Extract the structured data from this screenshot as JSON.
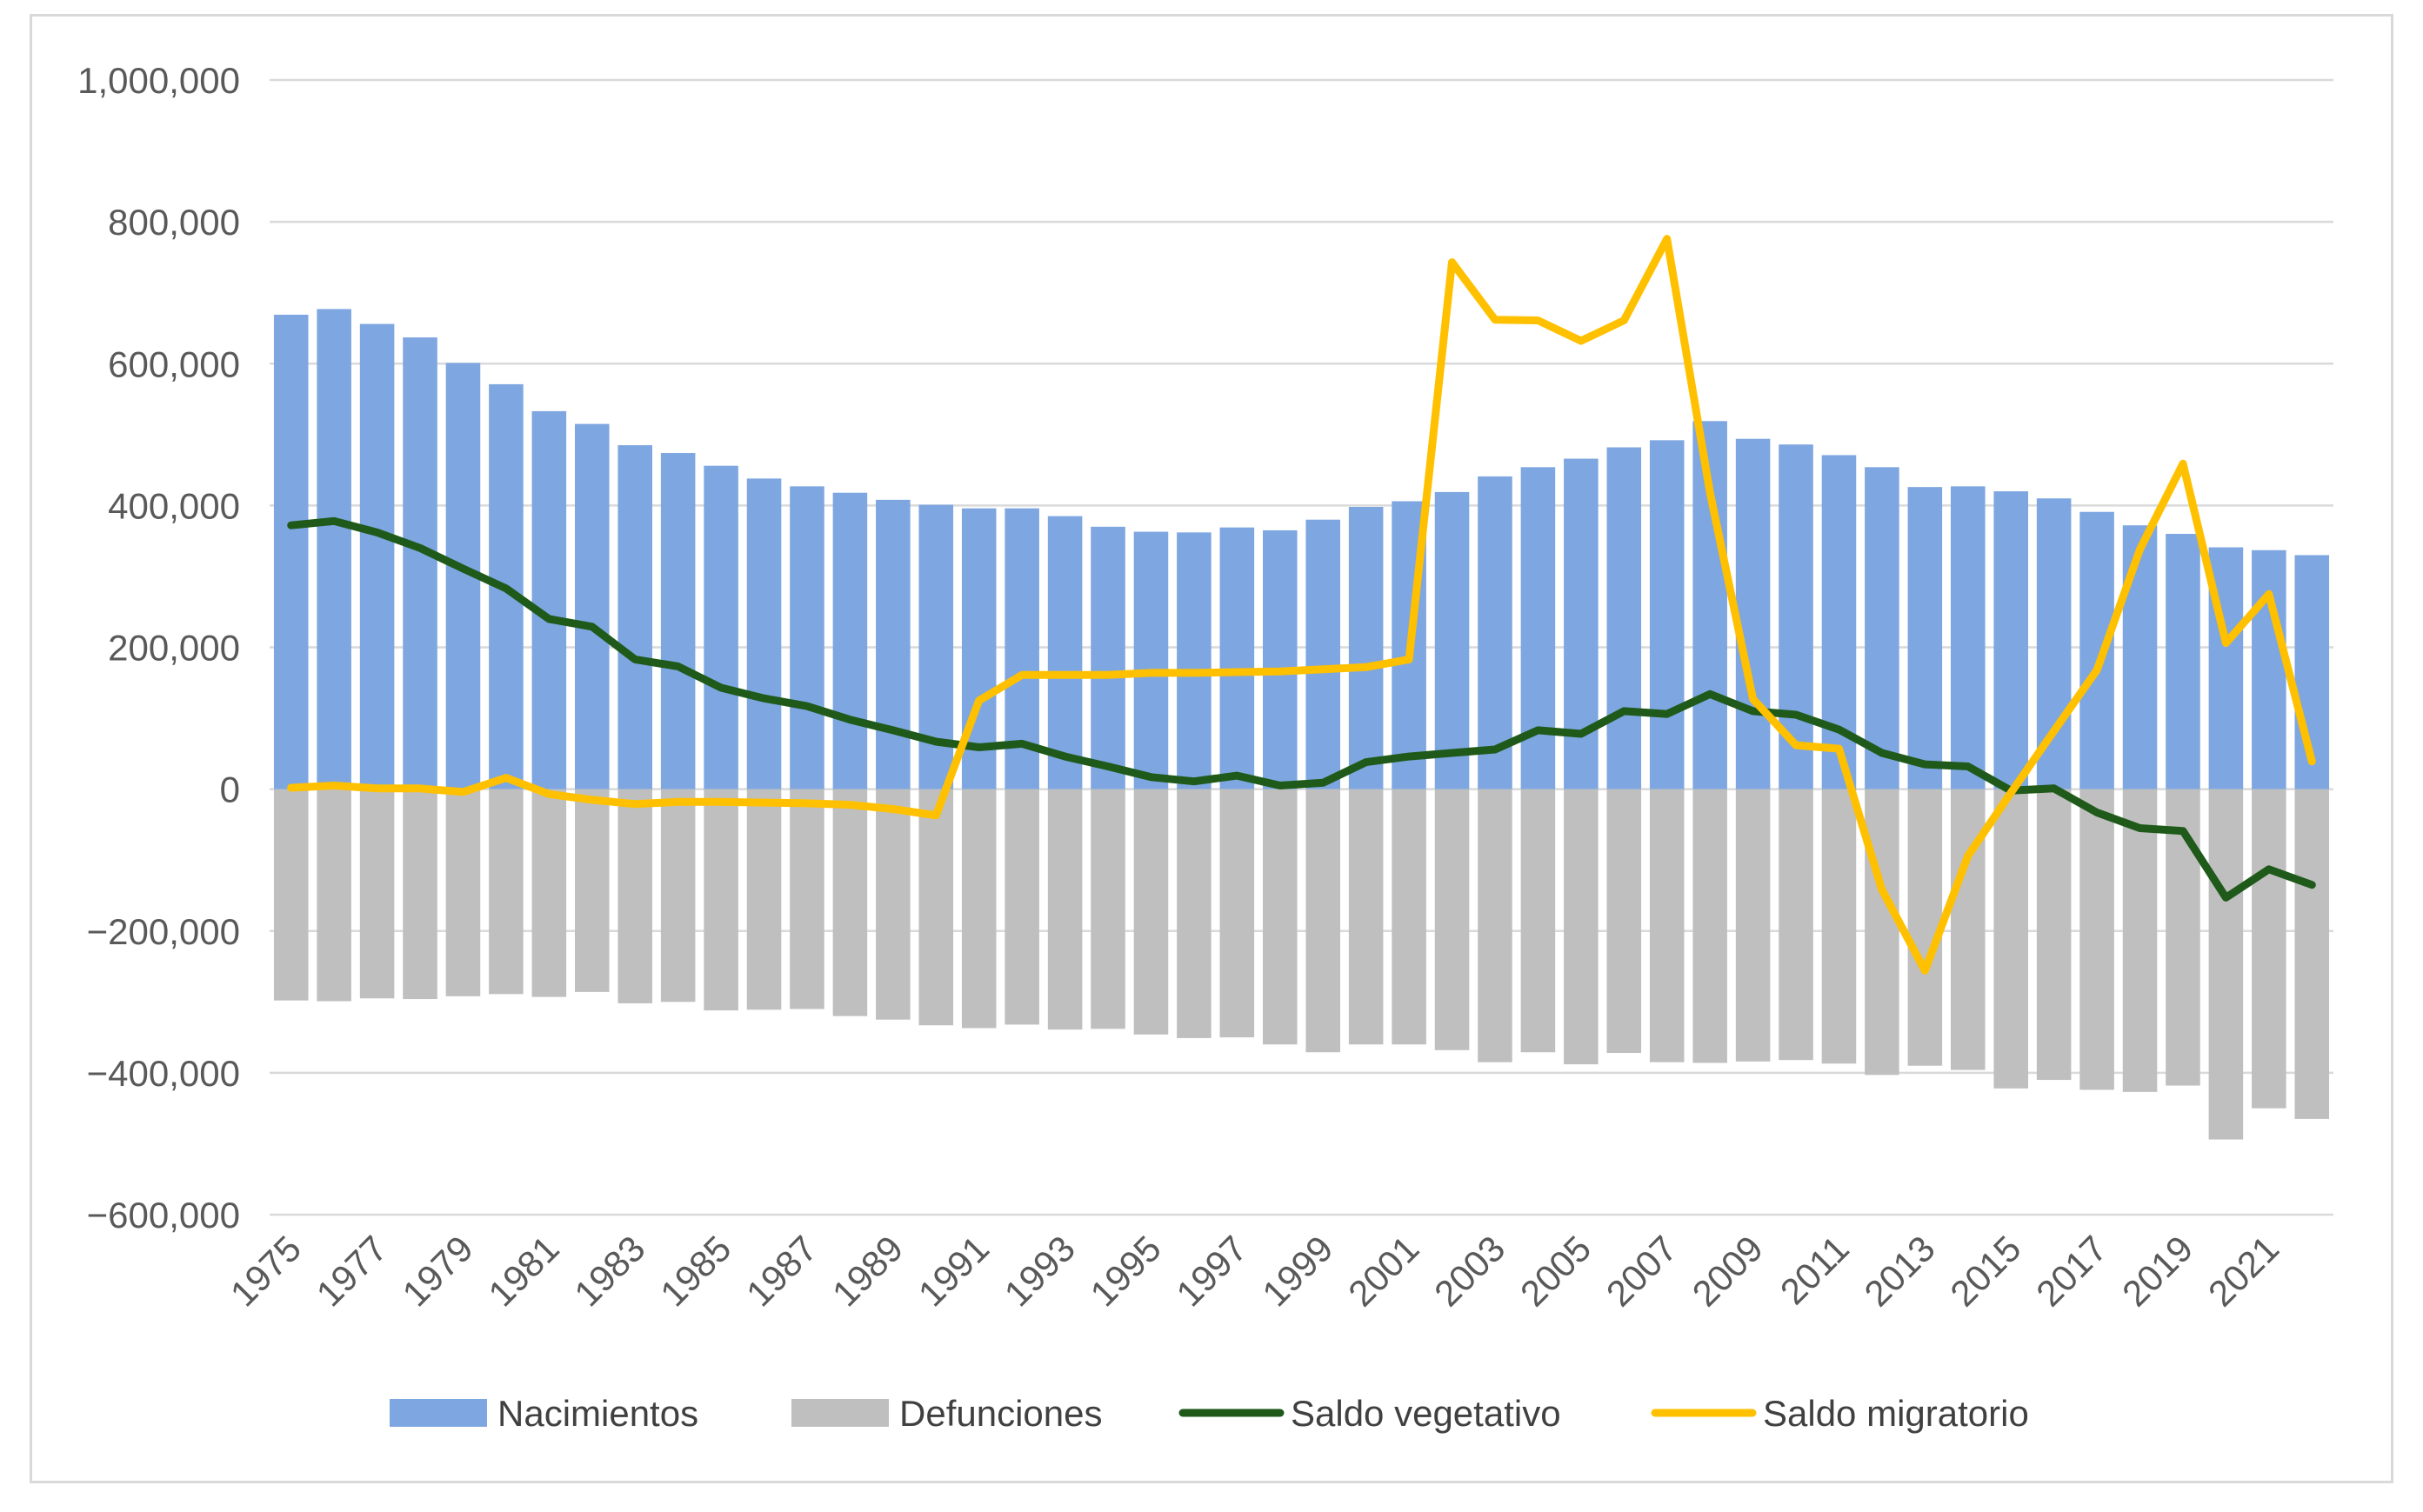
{
  "chart_data": {
    "type": "bar",
    "title": "",
    "xlabel": "",
    "ylabel": "",
    "ylim": [
      -600000,
      1000000
    ],
    "yticks": [
      -600000,
      -400000,
      -200000,
      0,
      200000,
      400000,
      600000,
      800000,
      1000000
    ],
    "ytick_labels": [
      "−600,000",
      "−400,000",
      "−200,000",
      "0",
      "200,000",
      "400,000",
      "600,000",
      "800,000",
      "1,000,000"
    ],
    "grid": true,
    "legend_position": "bottom",
    "categories": [
      "1975",
      "1976",
      "1977",
      "1978",
      "1979",
      "1980",
      "1981",
      "1982",
      "1983",
      "1984",
      "1985",
      "1986",
      "1987",
      "1988",
      "1989",
      "1990",
      "1991",
      "1992",
      "1993",
      "1994",
      "1995",
      "1996",
      "1997",
      "1998",
      "1999",
      "2000",
      "2001",
      "2002",
      "2003",
      "2004",
      "2005",
      "2006",
      "2007",
      "2008",
      "2009",
      "2010",
      "2011",
      "2012",
      "2013",
      "2014",
      "2015",
      "2016",
      "2017",
      "2018",
      "2019",
      "2020",
      "2021",
      "2022"
    ],
    "xtick_labels": [
      "1975",
      "1977",
      "1979",
      "1981",
      "1983",
      "1985",
      "1987",
      "1989",
      "1991",
      "1993",
      "1995",
      "1997",
      "1999",
      "2001",
      "2003",
      "2005",
      "2007",
      "2009",
      "2011",
      "2013",
      "2015",
      "2017",
      "2019",
      "2021"
    ],
    "series": [
      {
        "name": "Nacimientos",
        "kind": "bar",
        "color": "#7ea6e0",
        "values": [
          669000,
          677000,
          656000,
          637000,
          601000,
          571000,
          533000,
          515000,
          485000,
          474000,
          456000,
          438000,
          427000,
          418000,
          408000,
          401000,
          396000,
          396000,
          385000,
          370000,
          363000,
          362000,
          369000,
          365000,
          380000,
          398000,
          406000,
          419000,
          441000,
          454000,
          466000,
          482000,
          492000,
          519000,
          494000,
          486000,
          471000,
          454000,
          426000,
          427000,
          420000,
          410000,
          391000,
          372000,
          360000,
          341000,
          337000,
          330000
        ]
      },
      {
        "name": "Defunciones",
        "kind": "bar",
        "color": "#bfbfbf",
        "values": [
          -298000,
          -299000,
          -295000,
          -296000,
          -292000,
          -289000,
          -293000,
          -286000,
          -302000,
          -300000,
          -312000,
          -311000,
          -310000,
          -320000,
          -325000,
          -333000,
          -337000,
          -332000,
          -339000,
          -338000,
          -346000,
          -351000,
          -350000,
          -360000,
          -371000,
          -360000,
          -360000,
          -368000,
          -385000,
          -371000,
          -388000,
          -372000,
          -385000,
          -386000,
          -384000,
          -382000,
          -387000,
          -403000,
          -390000,
          -396000,
          -422000,
          -410000,
          -424000,
          -427000,
          -418000,
          -494000,
          -450000,
          -465000
        ]
      },
      {
        "name": "Saldo vegetativo",
        "kind": "line",
        "color": "#1f5a1a",
        "values": [
          372000,
          378000,
          362000,
          340000,
          311000,
          283000,
          240000,
          229000,
          183000,
          173000,
          143000,
          128000,
          117000,
          98000,
          83000,
          67000,
          59000,
          64000,
          46000,
          32000,
          17000,
          11000,
          19000,
          5000,
          9000,
          38000,
          46000,
          51000,
          56000,
          83000,
          78000,
          110000,
          106000,
          134000,
          110000,
          105000,
          84000,
          51000,
          35000,
          32000,
          -2000,
          1000,
          -33000,
          -55000,
          -59000,
          -153000,
          -113000,
          -135000
        ]
      },
      {
        "name": "Saldo migratorio",
        "kind": "line",
        "color": "#ffc000",
        "values": [
          2000,
          5000,
          1000,
          1000,
          -4000,
          16000,
          -7000,
          -15000,
          -21000,
          -18000,
          -18000,
          -19000,
          -20000,
          -22000,
          -28000,
          -37000,
          125000,
          161000,
          161000,
          161000,
          164000,
          164000,
          165000,
          166000,
          169000,
          172000,
          183000,
          743000,
          662000,
          661000,
          632000,
          661000,
          776000,
          418000,
          127000,
          62000,
          57000,
          -142000,
          -256000,
          -94000,
          -5000,
          82000,
          168000,
          338000,
          459000,
          206000,
          275000,
          39000
        ]
      }
    ]
  }
}
